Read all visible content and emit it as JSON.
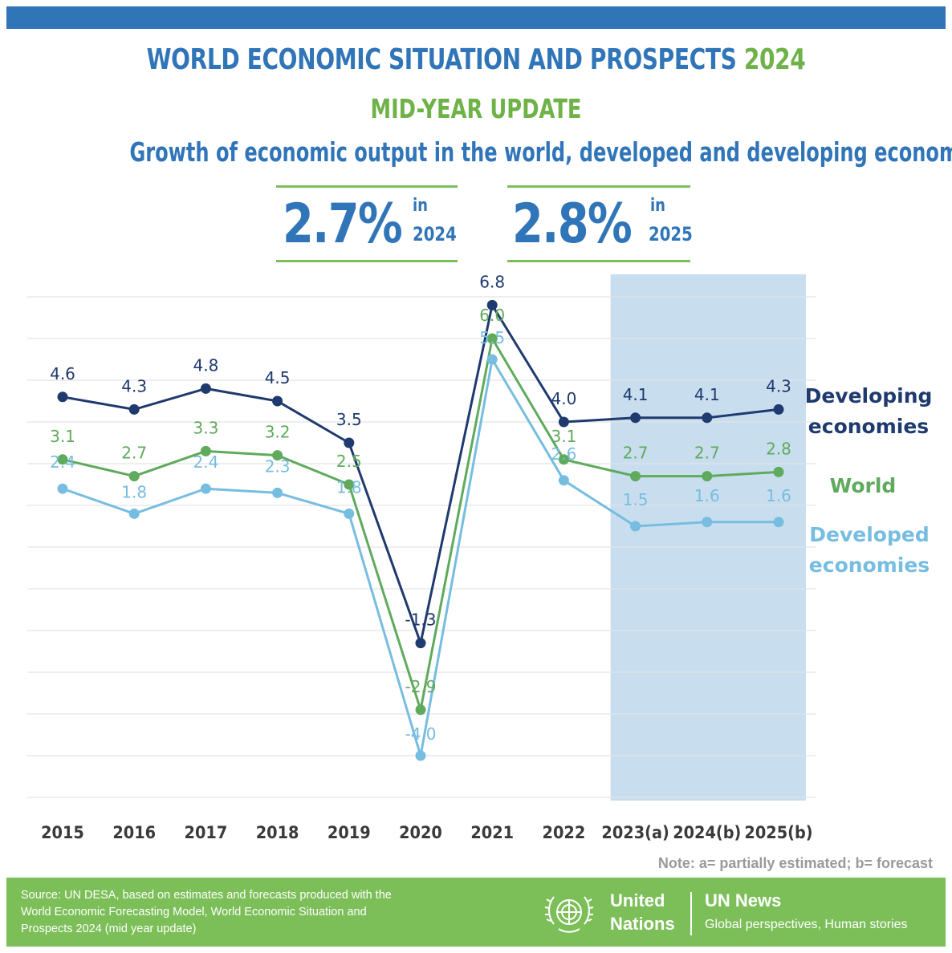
{
  "header": {
    "title_main": "WORLD ECONOMIC SITUATION AND PROSPECTS",
    "title_year": "2024",
    "subtitle": "MID-YEAR UPDATE",
    "heading": "Growth of economic output in the world, developed and developing economies"
  },
  "stats": [
    {
      "value": "2.7%",
      "in_label": "in",
      "year": "2024"
    },
    {
      "value": "2.8%",
      "in_label": "in",
      "year": "2025"
    }
  ],
  "colors": {
    "brand_blue": "#3175b9",
    "brand_green": "#6fb248",
    "developing": "#1f3a6e",
    "world": "#5faa5c",
    "developed": "#76bde0",
    "forecast_band": "#c5dcee"
  },
  "chart_data": {
    "type": "line",
    "categories": [
      "2015",
      "2016",
      "2017",
      "2018",
      "2019",
      "2020",
      "2021",
      "2022",
      "2023(a)",
      "2024(b)",
      "2025(b)"
    ],
    "series": [
      {
        "name": "Developing economies",
        "values": [
          4.6,
          4.3,
          4.8,
          4.5,
          3.5,
          -1.3,
          6.8,
          4.0,
          4.1,
          4.1,
          4.3
        ]
      },
      {
        "name": "World",
        "values": [
          3.1,
          2.7,
          3.3,
          3.2,
          2.5,
          -2.9,
          6.0,
          3.1,
          2.7,
          2.7,
          2.8
        ]
      },
      {
        "name": "Developed economies",
        "values": [
          2.4,
          1.8,
          2.4,
          2.3,
          1.8,
          -4.0,
          5.5,
          2.6,
          1.5,
          1.6,
          1.6
        ]
      }
    ],
    "series_labels": [
      {
        "line1": "Developing",
        "line2": "economies"
      },
      {
        "line1": "World",
        "line2": ""
      },
      {
        "line1": "Developed",
        "line2": "economies"
      }
    ],
    "highlighted_categories": [
      "2023(a)",
      "2024(b)",
      "2025(b)"
    ],
    "ylim": [
      -4.0,
      7.0
    ],
    "grid": true
  },
  "note": "Note: a= partially estimated; b= forecast",
  "footer": {
    "source": "Source: UN DESA, based on estimates and forecasts produced with the World Economic Forecasting Model, World Economic Situation and Prospects 2024 (mid year update)",
    "org_line1": "United",
    "org_line2": "Nations",
    "news_title": "UN News",
    "news_tagline": "Global perspectives, Human stories"
  }
}
